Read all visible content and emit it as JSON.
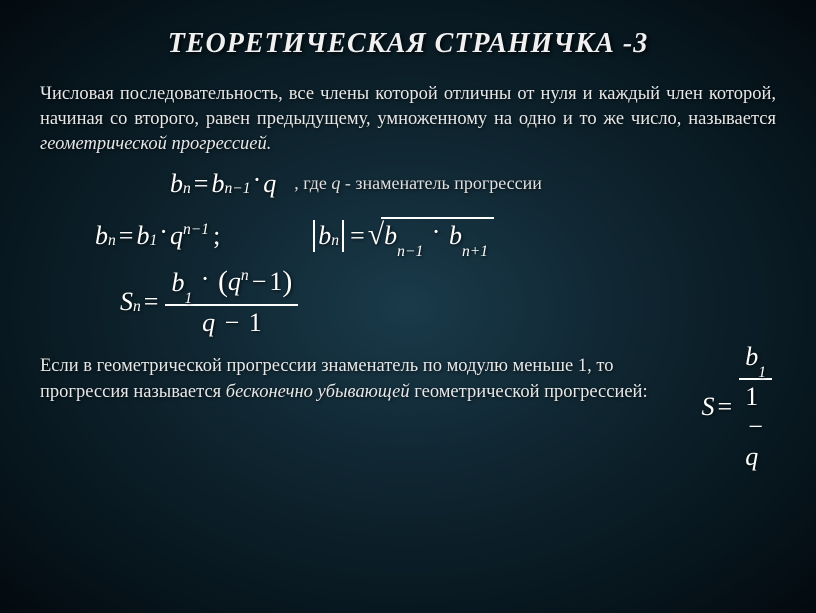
{
  "title": "ТЕОРЕТИЧЕСКАЯ СТРАНИЧКА -3",
  "definition_part1": "Числовая последовательность, все члены которой отличны от нуля и каждый член которой, начиная со второго, равен предыдущему, умноженному на одно и то же число, называется ",
  "definition_term": "геометрической  прогрессией.",
  "annotation_prefix": ", где ",
  "annotation_var": "q",
  "annotation_suffix": "  - знаменатель прогрессии",
  "definition2_part1": "Если в геометрической прогрессии знаменатель по модулю меньше 1, то прогрессия называется ",
  "definition2_term": "бесконечно убывающей",
  "definition2_part2": " геометрической прогрессией:",
  "formulas": {
    "recur": {
      "b": "b",
      "n": "n",
      "nm1": "n−1",
      "q": "q"
    },
    "general": {
      "b": "b",
      "n": "n",
      "one": "1",
      "q": "q",
      "nm1": "n−1"
    },
    "mean": {
      "b": "b",
      "n": "n",
      "nm1": "n−1",
      "np1": "n+1"
    },
    "sum": {
      "S": "S",
      "n": "n",
      "b": "b",
      "one": "1",
      "q": "q"
    },
    "inf": {
      "S": "S",
      "b": "b",
      "one": "1",
      "q": "q"
    }
  },
  "styling": {
    "bg_gradient": [
      "#1a3a4a",
      "#0f2530",
      "#081820",
      "#030a0f"
    ],
    "text_color": "#e8e8e8",
    "formula_color": "#ffffff",
    "title_fontsize": 28,
    "body_fontsize": 18.5,
    "formula_fontsize": 26,
    "font_family": "Georgia / Times New Roman serif"
  }
}
